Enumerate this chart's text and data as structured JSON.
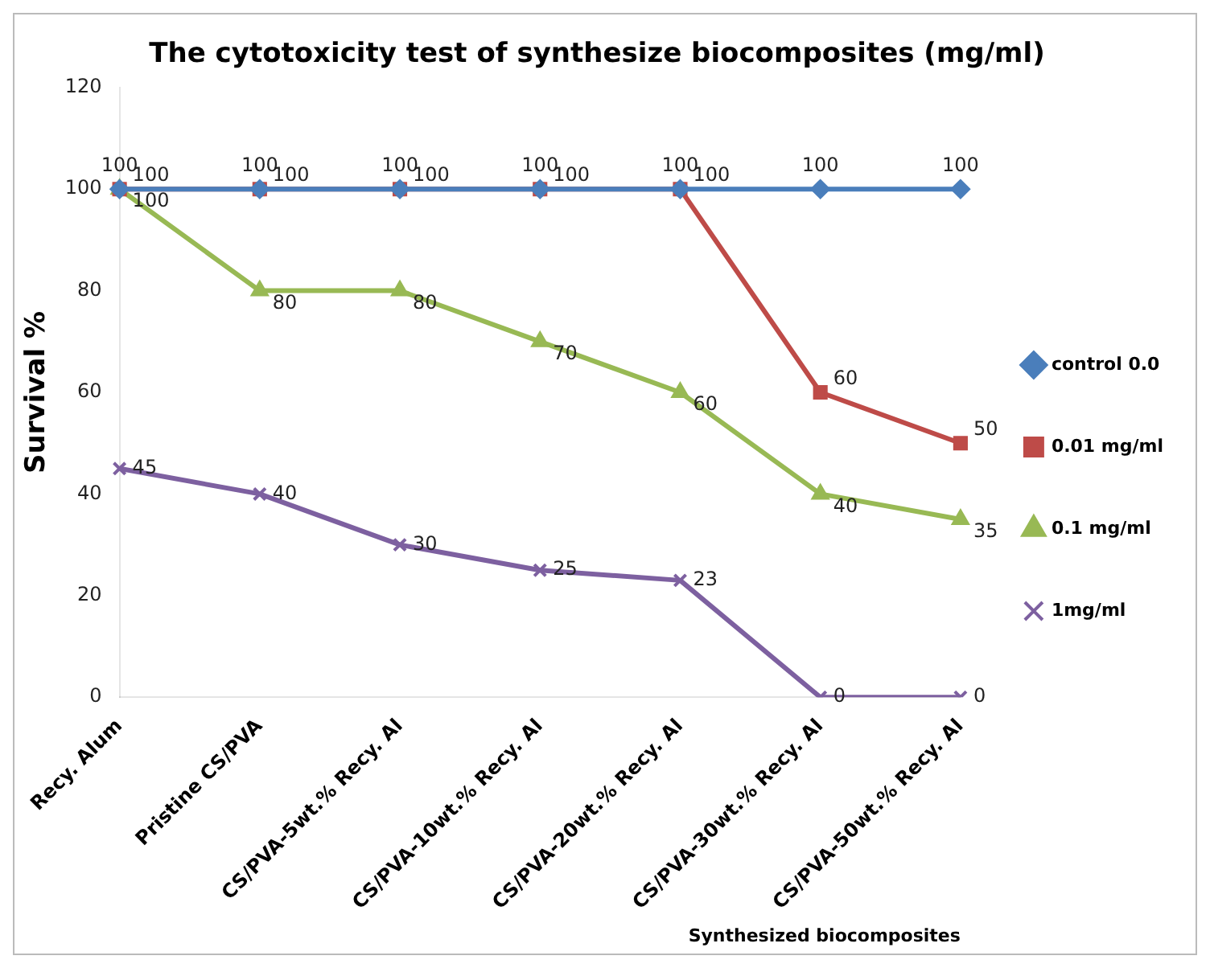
{
  "chart_data": {
    "type": "line",
    "title": "The cytotoxicity test of synthesize biocomposites (mg/ml)",
    "xlabel": "Synthesized biocomposites",
    "ylabel": "Survival %",
    "categories": [
      "Recy. Alum",
      "Pristine CS/PVA",
      "CS/PVA-5wt.% Recy. Al",
      "CS/PVA-10wt.% Recy. Al",
      "CS/PVA-20wt.% Recy. Al",
      "CS/PVA-30wt.% Recy. Al",
      "CS/PVA-50wt.% Recy. Al"
    ],
    "series": [
      {
        "name": "control 0.0",
        "color": "#4a7ebb",
        "marker": "diamond",
        "values": [
          100,
          100,
          100,
          100,
          100,
          100,
          100
        ]
      },
      {
        "name": "0.01 mg/ml",
        "color": "#be4b48",
        "marker": "square",
        "values": [
          100,
          100,
          100,
          100,
          100,
          60,
          50
        ]
      },
      {
        "name": "0.1 mg/ml",
        "color": "#98b954",
        "marker": "triangle",
        "values": [
          100,
          80,
          80,
          70,
          60,
          40,
          35
        ]
      },
      {
        "name": "1mg/ml",
        "color": "#7d60a0",
        "marker": "cross",
        "values": [
          45,
          40,
          30,
          25,
          23,
          0,
          0
        ]
      }
    ],
    "ylim": [
      0,
      120
    ],
    "yticks": [
      0,
      20,
      40,
      60,
      80,
      100,
      120
    ],
    "grid": false,
    "legend": "right",
    "data_labels": true
  }
}
